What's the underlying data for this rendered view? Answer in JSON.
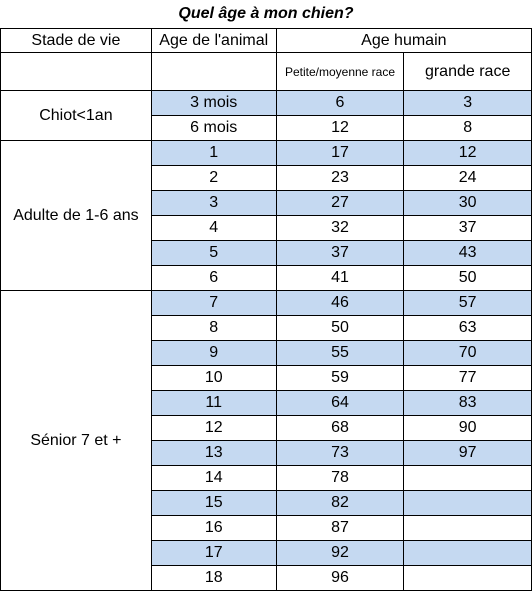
{
  "title": "Quel âge à mon chien?",
  "headers": {
    "stage": "Stade de vie",
    "animal_age": "Age de l'animal",
    "human_age": "Age humain",
    "small_medium": "Petite/moyenne race",
    "large": "grande race"
  },
  "stages": [
    "Chiot<1an",
    "Adulte de 1-6 ans",
    "Sénior 7 et +"
  ],
  "highlight_color": "#c5d9f1",
  "rows": [
    {
      "age": "3 mois",
      "small": "6",
      "large": "3",
      "highlight": true
    },
    {
      "age": "6 mois",
      "small": "12",
      "large": "8",
      "highlight": false
    },
    {
      "age": "1",
      "small": "17",
      "large": "12",
      "highlight": true
    },
    {
      "age": "2",
      "small": "23",
      "large": "24",
      "highlight": false
    },
    {
      "age": "3",
      "small": "27",
      "large": "30",
      "highlight": true
    },
    {
      "age": "4",
      "small": "32",
      "large": "37",
      "highlight": false
    },
    {
      "age": "5",
      "small": "37",
      "large": "43",
      "highlight": true
    },
    {
      "age": "6",
      "small": "41",
      "large": "50",
      "highlight": false
    },
    {
      "age": "7",
      "small": "46",
      "large": "57",
      "highlight": true
    },
    {
      "age": "8",
      "small": "50",
      "large": "63",
      "highlight": false
    },
    {
      "age": "9",
      "small": "55",
      "large": "70",
      "highlight": true
    },
    {
      "age": "10",
      "small": "59",
      "large": "77",
      "highlight": false
    },
    {
      "age": "11",
      "small": "64",
      "large": "83",
      "highlight": true
    },
    {
      "age": "12",
      "small": "68",
      "large": "90",
      "highlight": false
    },
    {
      "age": "13",
      "small": "73",
      "large": "97",
      "highlight": true
    },
    {
      "age": "14",
      "small": "78",
      "large": "",
      "highlight": false
    },
    {
      "age": "15",
      "small": "82",
      "large": "",
      "highlight": true
    },
    {
      "age": "16",
      "small": "87",
      "large": "",
      "highlight": false
    },
    {
      "age": "17",
      "small": "92",
      "large": "",
      "highlight": true
    },
    {
      "age": "18",
      "small": "96",
      "large": "",
      "highlight": false
    }
  ]
}
